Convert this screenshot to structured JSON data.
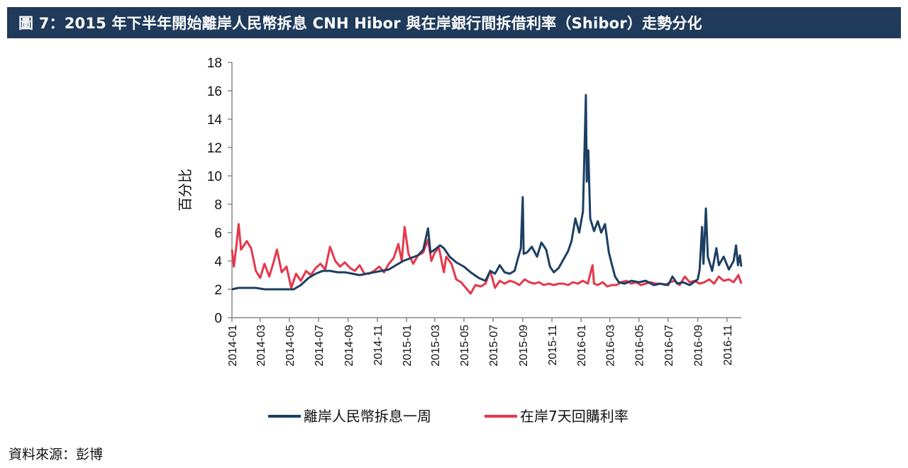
{
  "title": "圖 7：2015 年下半年開始離岸人民幣拆息 CNH Hibor 與在岸銀行間拆借利率（Shibor）走勢分化",
  "source": "資料來源：彭博",
  "colors": {
    "title_bg": "#1f3a5b",
    "offshore": "#1c3f63",
    "onshore": "#e5374b"
  },
  "chart_data": {
    "type": "line",
    "ylabel": "百分比",
    "ylim": [
      0,
      18
    ],
    "yticks": [
      0,
      2,
      4,
      6,
      8,
      10,
      12,
      14,
      16,
      18
    ],
    "xlim": [
      "2014-01",
      "2016-12"
    ],
    "xticks": [
      "2014-01",
      "2014-03",
      "2014-05",
      "2014-07",
      "2014-09",
      "2014-11",
      "2015-01",
      "2015-03",
      "2015-05",
      "2015-07",
      "2015-09",
      "2015-11",
      "2016-01",
      "2016-03",
      "2016-05",
      "2016-07",
      "2016-09",
      "2016-11"
    ],
    "grid": false,
    "legend_position": "bottom",
    "series": [
      {
        "name": "離岸人民幣拆息一周",
        "color": "#1c3f63",
        "points": [
          [
            "2014-01-01",
            2.0
          ],
          [
            "2014-01-15",
            2.1
          ],
          [
            "2014-02-01",
            2.1
          ],
          [
            "2014-02-20",
            2.1
          ],
          [
            "2014-03-10",
            2.0
          ],
          [
            "2014-04-01",
            2.0
          ],
          [
            "2014-04-20",
            2.0
          ],
          [
            "2014-05-10",
            2.0
          ],
          [
            "2014-05-25",
            2.3
          ],
          [
            "2014-06-10",
            2.8
          ],
          [
            "2014-06-25",
            3.1
          ],
          [
            "2014-07-10",
            3.3
          ],
          [
            "2014-07-25",
            3.3
          ],
          [
            "2014-08-10",
            3.2
          ],
          [
            "2014-08-25",
            3.2
          ],
          [
            "2014-09-10",
            3.1
          ],
          [
            "2014-09-25",
            3.0
          ],
          [
            "2014-10-10",
            3.1
          ],
          [
            "2014-10-25",
            3.2
          ],
          [
            "2014-11-10",
            3.3
          ],
          [
            "2014-11-25",
            3.4
          ],
          [
            "2014-12-10",
            3.7
          ],
          [
            "2014-12-25",
            4.0
          ],
          [
            "2015-01-10",
            4.2
          ],
          [
            "2015-01-25",
            4.4
          ],
          [
            "2015-02-05",
            4.8
          ],
          [
            "2015-02-15",
            6.3
          ],
          [
            "2015-02-20",
            4.6
          ],
          [
            "2015-03-01",
            4.8
          ],
          [
            "2015-03-12",
            5.1
          ],
          [
            "2015-03-20",
            4.9
          ],
          [
            "2015-04-01",
            4.3
          ],
          [
            "2015-04-15",
            3.9
          ],
          [
            "2015-05-01",
            3.6
          ],
          [
            "2015-05-15",
            3.2
          ],
          [
            "2015-06-01",
            2.8
          ],
          [
            "2015-06-15",
            2.6
          ],
          [
            "2015-06-25",
            3.3
          ],
          [
            "2015-07-05",
            3.1
          ],
          [
            "2015-07-15",
            3.7
          ],
          [
            "2015-07-25",
            3.2
          ],
          [
            "2015-08-05",
            3.1
          ],
          [
            "2015-08-15",
            3.3
          ],
          [
            "2015-08-22",
            4.2
          ],
          [
            "2015-08-28",
            4.9
          ],
          [
            "2015-09-01",
            8.5
          ],
          [
            "2015-09-03",
            4.5
          ],
          [
            "2015-09-10",
            4.6
          ],
          [
            "2015-09-20",
            5.0
          ],
          [
            "2015-10-01",
            4.3
          ],
          [
            "2015-10-10",
            5.3
          ],
          [
            "2015-10-20",
            4.8
          ],
          [
            "2015-10-28",
            3.6
          ],
          [
            "2015-11-05",
            3.2
          ],
          [
            "2015-11-15",
            3.5
          ],
          [
            "2015-11-25",
            4.1
          ],
          [
            "2015-12-05",
            4.7
          ],
          [
            "2015-12-12",
            5.4
          ],
          [
            "2015-12-20",
            7.0
          ],
          [
            "2015-12-28",
            6.0
          ],
          [
            "2016-01-05",
            7.5
          ],
          [
            "2016-01-11",
            15.7
          ],
          [
            "2016-01-13",
            9.6
          ],
          [
            "2016-01-16",
            11.8
          ],
          [
            "2016-01-20",
            7.0
          ],
          [
            "2016-01-28",
            6.1
          ],
          [
            "2016-02-05",
            6.8
          ],
          [
            "2016-02-12",
            6.0
          ],
          [
            "2016-02-20",
            6.6
          ],
          [
            "2016-02-28",
            4.6
          ],
          [
            "2016-03-05",
            3.8
          ],
          [
            "2016-03-12",
            2.9
          ],
          [
            "2016-03-20",
            2.5
          ],
          [
            "2016-04-01",
            2.4
          ],
          [
            "2016-04-15",
            2.6
          ],
          [
            "2016-05-01",
            2.5
          ],
          [
            "2016-05-15",
            2.6
          ],
          [
            "2016-06-01",
            2.3
          ],
          [
            "2016-06-15",
            2.4
          ],
          [
            "2016-07-01",
            2.3
          ],
          [
            "2016-07-10",
            2.9
          ],
          [
            "2016-07-20",
            2.4
          ],
          [
            "2016-08-01",
            2.5
          ],
          [
            "2016-08-15",
            2.3
          ],
          [
            "2016-09-01",
            2.7
          ],
          [
            "2016-09-05",
            3.4
          ],
          [
            "2016-09-10",
            6.4
          ],
          [
            "2016-09-13",
            3.8
          ],
          [
            "2016-09-18",
            7.7
          ],
          [
            "2016-09-22",
            4.3
          ],
          [
            "2016-10-01",
            3.3
          ],
          [
            "2016-10-10",
            4.9
          ],
          [
            "2016-10-15",
            3.7
          ],
          [
            "2016-10-25",
            4.3
          ],
          [
            "2016-11-05",
            3.4
          ],
          [
            "2016-11-15",
            4.0
          ],
          [
            "2016-11-20",
            5.1
          ],
          [
            "2016-11-24",
            3.7
          ],
          [
            "2016-11-28",
            4.4
          ],
          [
            "2016-12-01",
            3.6
          ]
        ]
      },
      {
        "name": "在岸7天回購利率",
        "color": "#e5374b",
        "points": [
          [
            "2014-01-01",
            4.8
          ],
          [
            "2014-01-05",
            3.6
          ],
          [
            "2014-01-10",
            5.0
          ],
          [
            "2014-01-15",
            6.6
          ],
          [
            "2014-01-20",
            4.8
          ],
          [
            "2014-02-01",
            5.4
          ],
          [
            "2014-02-10",
            4.9
          ],
          [
            "2014-02-20",
            3.3
          ],
          [
            "2014-03-01",
            2.8
          ],
          [
            "2014-03-10",
            3.8
          ],
          [
            "2014-03-20",
            2.9
          ],
          [
            "2014-03-28",
            3.8
          ],
          [
            "2014-04-05",
            4.8
          ],
          [
            "2014-04-15",
            3.2
          ],
          [
            "2014-04-25",
            3.6
          ],
          [
            "2014-05-05",
            2.1
          ],
          [
            "2014-05-15",
            3.1
          ],
          [
            "2014-05-25",
            2.6
          ],
          [
            "2014-06-05",
            3.3
          ],
          [
            "2014-06-15",
            3.0
          ],
          [
            "2014-06-25",
            3.5
          ],
          [
            "2014-07-05",
            3.8
          ],
          [
            "2014-07-15",
            3.4
          ],
          [
            "2014-07-25",
            5.0
          ],
          [
            "2014-08-05",
            4.0
          ],
          [
            "2014-08-15",
            3.6
          ],
          [
            "2014-08-25",
            3.9
          ],
          [
            "2014-09-05",
            3.5
          ],
          [
            "2014-09-15",
            3.3
          ],
          [
            "2014-09-25",
            3.7
          ],
          [
            "2014-10-05",
            3.1
          ],
          [
            "2014-10-15",
            3.1
          ],
          [
            "2014-10-25",
            3.3
          ],
          [
            "2014-11-05",
            3.6
          ],
          [
            "2014-11-15",
            3.2
          ],
          [
            "2014-11-25",
            3.8
          ],
          [
            "2014-12-05",
            4.2
          ],
          [
            "2014-12-15",
            5.2
          ],
          [
            "2014-12-22",
            4.0
          ],
          [
            "2014-12-28",
            6.4
          ],
          [
            "2015-01-05",
            4.5
          ],
          [
            "2015-01-15",
            3.8
          ],
          [
            "2015-01-25",
            4.4
          ],
          [
            "2015-02-05",
            4.6
          ],
          [
            "2015-02-15",
            5.5
          ],
          [
            "2015-02-22",
            4.0
          ],
          [
            "2015-03-01",
            4.6
          ],
          [
            "2015-03-10",
            4.9
          ],
          [
            "2015-03-20",
            3.2
          ],
          [
            "2015-03-25",
            4.3
          ],
          [
            "2015-04-05",
            3.8
          ],
          [
            "2015-04-15",
            2.7
          ],
          [
            "2015-04-25",
            2.5
          ],
          [
            "2015-05-05",
            2.1
          ],
          [
            "2015-05-15",
            1.7
          ],
          [
            "2015-05-25",
            2.3
          ],
          [
            "2015-06-05",
            2.2
          ],
          [
            "2015-06-15",
            2.4
          ],
          [
            "2015-06-25",
            3.3
          ],
          [
            "2015-07-05",
            2.1
          ],
          [
            "2015-07-15",
            2.6
          ],
          [
            "2015-07-25",
            2.4
          ],
          [
            "2015-08-05",
            2.6
          ],
          [
            "2015-08-15",
            2.5
          ],
          [
            "2015-08-25",
            2.3
          ],
          [
            "2015-09-05",
            2.7
          ],
          [
            "2015-09-15",
            2.5
          ],
          [
            "2015-09-25",
            2.4
          ],
          [
            "2015-10-05",
            2.5
          ],
          [
            "2015-10-15",
            2.3
          ],
          [
            "2015-10-25",
            2.4
          ],
          [
            "2015-11-05",
            2.3
          ],
          [
            "2015-11-15",
            2.4
          ],
          [
            "2015-11-25",
            2.4
          ],
          [
            "2015-12-05",
            2.3
          ],
          [
            "2015-12-15",
            2.5
          ],
          [
            "2015-12-25",
            2.4
          ],
          [
            "2016-01-05",
            2.6
          ],
          [
            "2016-01-15",
            2.4
          ],
          [
            "2016-01-25",
            3.7
          ],
          [
            "2016-01-28",
            2.4
          ],
          [
            "2016-02-05",
            2.3
          ],
          [
            "2016-02-15",
            2.5
          ],
          [
            "2016-02-25",
            2.2
          ],
          [
            "2016-03-05",
            2.3
          ],
          [
            "2016-03-15",
            2.3
          ],
          [
            "2016-03-25",
            2.5
          ],
          [
            "2016-04-05",
            2.6
          ],
          [
            "2016-04-15",
            2.4
          ],
          [
            "2016-04-25",
            2.5
          ],
          [
            "2016-05-05",
            2.3
          ],
          [
            "2016-05-15",
            2.4
          ],
          [
            "2016-05-25",
            2.5
          ],
          [
            "2016-06-05",
            2.4
          ],
          [
            "2016-06-15",
            2.4
          ],
          [
            "2016-06-25",
            2.3
          ],
          [
            "2016-07-05",
            2.5
          ],
          [
            "2016-07-15",
            2.6
          ],
          [
            "2016-07-25",
            2.3
          ],
          [
            "2016-08-05",
            2.9
          ],
          [
            "2016-08-15",
            2.5
          ],
          [
            "2016-08-25",
            2.6
          ],
          [
            "2016-09-05",
            2.4
          ],
          [
            "2016-09-15",
            2.5
          ],
          [
            "2016-09-25",
            2.7
          ],
          [
            "2016-10-05",
            2.4
          ],
          [
            "2016-10-15",
            2.9
          ],
          [
            "2016-10-25",
            2.6
          ],
          [
            "2016-11-05",
            2.7
          ],
          [
            "2016-11-15",
            2.5
          ],
          [
            "2016-11-25",
            3.0
          ],
          [
            "2016-12-01",
            2.4
          ]
        ]
      }
    ]
  }
}
